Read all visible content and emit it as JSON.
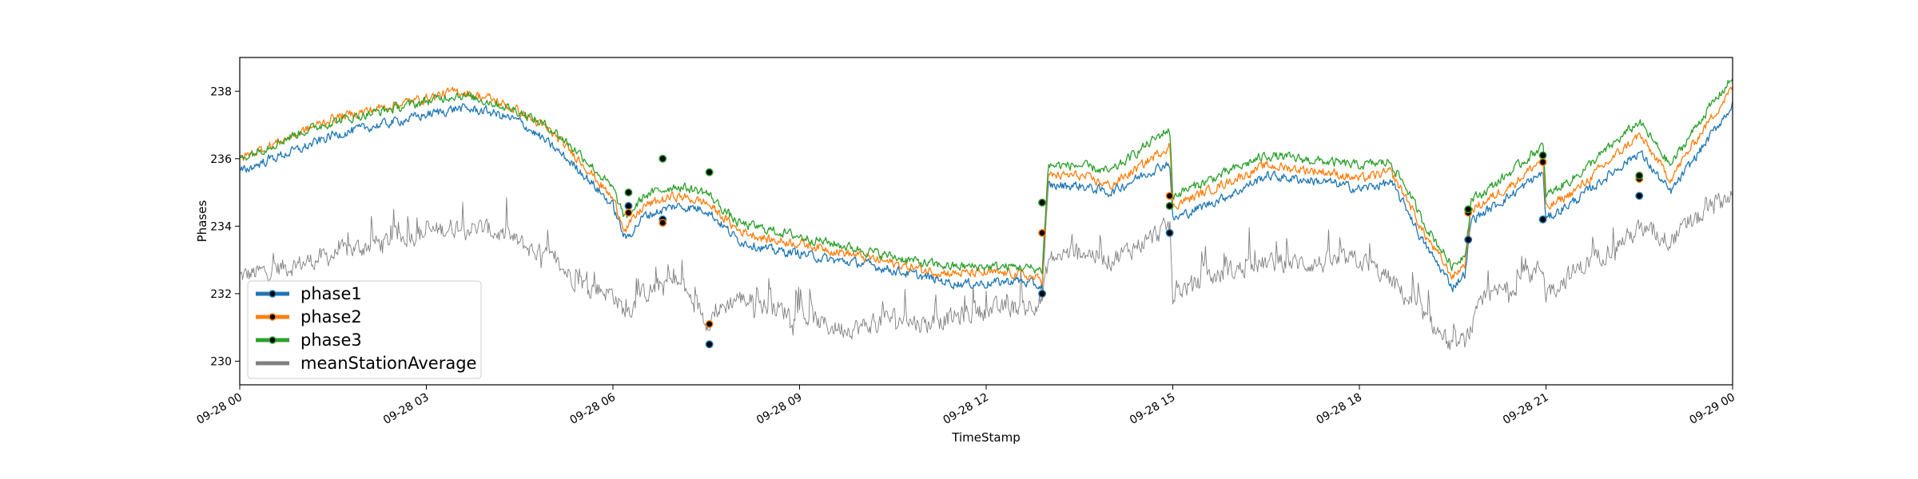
{
  "chart_data": {
    "type": "line",
    "title": "",
    "xlabel": "TimeStamp",
    "ylabel": "Phases",
    "x_range_hours": [
      0,
      24
    ],
    "ylim": [
      229.3,
      239.0
    ],
    "x_ticks": [
      {
        "hour": 0,
        "label": "09-28 00"
      },
      {
        "hour": 3,
        "label": "09-28 03"
      },
      {
        "hour": 6,
        "label": "09-28 06"
      },
      {
        "hour": 9,
        "label": "09-28 09"
      },
      {
        "hour": 12,
        "label": "09-28 12"
      },
      {
        "hour": 15,
        "label": "09-28 15"
      },
      {
        "hour": 18,
        "label": "09-28 18"
      },
      {
        "hour": 21,
        "label": "09-28 21"
      },
      {
        "hour": 24,
        "label": "09-29 00"
      }
    ],
    "y_ticks": [
      230,
      232,
      234,
      236,
      238
    ],
    "legend_position": "lower-left",
    "grid": false,
    "series": [
      {
        "name": "phase1",
        "color": "#1f77b4",
        "style": "line",
        "noise": 0.22,
        "values": [
          [
            0,
            235.6
          ],
          [
            0.5,
            236.0
          ],
          [
            1,
            236.3
          ],
          [
            1.5,
            236.7
          ],
          [
            2,
            236.9
          ],
          [
            2.5,
            237.1
          ],
          [
            3,
            237.3
          ],
          [
            3.5,
            237.5
          ],
          [
            4,
            237.4
          ],
          [
            4.5,
            237.1
          ],
          [
            5,
            236.4
          ],
          [
            5.5,
            235.6
          ],
          [
            6,
            234.6
          ],
          [
            6.2,
            233.6
          ],
          [
            6.5,
            234.3
          ],
          [
            7,
            234.6
          ],
          [
            7.5,
            234.5
          ],
          [
            8,
            233.6
          ],
          [
            8.5,
            233.3
          ],
          [
            9,
            233.2
          ],
          [
            9.5,
            233.0
          ],
          [
            10,
            232.9
          ],
          [
            10.5,
            232.7
          ],
          [
            11,
            232.5
          ],
          [
            11.5,
            232.3
          ],
          [
            12,
            232.3
          ],
          [
            12.5,
            232.4
          ],
          [
            12.9,
            232.2
          ],
          [
            13,
            235.2
          ],
          [
            13.5,
            235.2
          ],
          [
            14,
            235.0
          ],
          [
            14.5,
            235.5
          ],
          [
            14.95,
            235.9
          ],
          [
            15,
            234.2
          ],
          [
            15.5,
            234.6
          ],
          [
            16,
            235.0
          ],
          [
            16.5,
            235.5
          ],
          [
            17,
            235.4
          ],
          [
            17.5,
            235.3
          ],
          [
            18,
            235.1
          ],
          [
            18.5,
            235.3
          ],
          [
            18.8,
            234.4
          ],
          [
            19,
            233.6
          ],
          [
            19.5,
            232.2
          ],
          [
            19.7,
            232.6
          ],
          [
            19.8,
            234.2
          ],
          [
            20,
            234.4
          ],
          [
            20.5,
            235.0
          ],
          [
            20.95,
            235.6
          ],
          [
            21,
            234.2
          ],
          [
            21.5,
            234.8
          ],
          [
            22,
            235.5
          ],
          [
            22.5,
            236.2
          ],
          [
            23,
            235.0
          ],
          [
            23.5,
            236.3
          ],
          [
            24,
            237.6
          ]
        ]
      },
      {
        "name": "phase2",
        "color": "#ff7f0e",
        "style": "line",
        "noise": 0.22,
        "values": [
          [
            0,
            236.0
          ],
          [
            0.5,
            236.4
          ],
          [
            1,
            236.8
          ],
          [
            1.5,
            237.2
          ],
          [
            2,
            237.4
          ],
          [
            2.5,
            237.6
          ],
          [
            3,
            237.8
          ],
          [
            3.5,
            238.0
          ],
          [
            4,
            237.8
          ],
          [
            4.5,
            237.4
          ],
          [
            5,
            236.8
          ],
          [
            5.5,
            235.9
          ],
          [
            6,
            234.8
          ],
          [
            6.2,
            233.9
          ],
          [
            6.5,
            234.6
          ],
          [
            7,
            234.9
          ],
          [
            7.5,
            234.7
          ],
          [
            8,
            233.9
          ],
          [
            8.5,
            233.6
          ],
          [
            9,
            233.5
          ],
          [
            9.5,
            233.3
          ],
          [
            10,
            233.1
          ],
          [
            10.5,
            232.9
          ],
          [
            11,
            232.7
          ],
          [
            11.5,
            232.6
          ],
          [
            12,
            232.6
          ],
          [
            12.5,
            232.6
          ],
          [
            12.9,
            232.4
          ],
          [
            13,
            235.5
          ],
          [
            13.5,
            235.5
          ],
          [
            14,
            235.2
          ],
          [
            14.5,
            235.8
          ],
          [
            14.95,
            236.4
          ],
          [
            15,
            234.6
          ],
          [
            15.5,
            235.0
          ],
          [
            16,
            235.4
          ],
          [
            16.5,
            235.8
          ],
          [
            17,
            235.7
          ],
          [
            17.5,
            235.6
          ],
          [
            18,
            235.4
          ],
          [
            18.5,
            235.6
          ],
          [
            18.8,
            234.7
          ],
          [
            19,
            233.9
          ],
          [
            19.5,
            232.5
          ],
          [
            19.7,
            232.9
          ],
          [
            19.8,
            234.5
          ],
          [
            20,
            234.7
          ],
          [
            20.5,
            235.3
          ],
          [
            20.95,
            236.0
          ],
          [
            21,
            234.5
          ],
          [
            21.5,
            235.1
          ],
          [
            22,
            235.9
          ],
          [
            22.5,
            236.7
          ],
          [
            23,
            235.4
          ],
          [
            23.5,
            236.8
          ],
          [
            24,
            238.1
          ]
        ]
      },
      {
        "name": "phase3",
        "color": "#2ca02c",
        "style": "line",
        "noise": 0.22,
        "values": [
          [
            0,
            236.0
          ],
          [
            0.5,
            236.4
          ],
          [
            1,
            236.8
          ],
          [
            1.5,
            237.1
          ],
          [
            2,
            237.3
          ],
          [
            2.5,
            237.5
          ],
          [
            3,
            237.7
          ],
          [
            3.5,
            237.9
          ],
          [
            4,
            237.7
          ],
          [
            4.5,
            237.4
          ],
          [
            5,
            236.9
          ],
          [
            5.5,
            236.1
          ],
          [
            6,
            235.1
          ],
          [
            6.2,
            234.2
          ],
          [
            6.5,
            234.9
          ],
          [
            7,
            235.2
          ],
          [
            7.5,
            235.0
          ],
          [
            8,
            234.1
          ],
          [
            8.5,
            233.9
          ],
          [
            9,
            233.7
          ],
          [
            9.5,
            233.5
          ],
          [
            10,
            233.3
          ],
          [
            10.5,
            233.1
          ],
          [
            11,
            232.9
          ],
          [
            11.5,
            232.8
          ],
          [
            12,
            232.8
          ],
          [
            12.5,
            232.8
          ],
          [
            12.9,
            232.7
          ],
          [
            13,
            235.8
          ],
          [
            13.5,
            235.8
          ],
          [
            14,
            235.6
          ],
          [
            14.5,
            236.3
          ],
          [
            14.95,
            236.9
          ],
          [
            15,
            234.9
          ],
          [
            15.5,
            235.3
          ],
          [
            16,
            235.7
          ],
          [
            16.5,
            236.1
          ],
          [
            17,
            236.0
          ],
          [
            17.5,
            235.9
          ],
          [
            18,
            235.8
          ],
          [
            18.5,
            235.9
          ],
          [
            18.8,
            235.0
          ],
          [
            19,
            234.2
          ],
          [
            19.5,
            232.8
          ],
          [
            19.7,
            233.2
          ],
          [
            19.8,
            234.8
          ],
          [
            20,
            235.0
          ],
          [
            20.5,
            235.7
          ],
          [
            20.95,
            236.4
          ],
          [
            21,
            234.9
          ],
          [
            21.5,
            235.5
          ],
          [
            22,
            236.3
          ],
          [
            22.5,
            237.1
          ],
          [
            23,
            235.8
          ],
          [
            23.5,
            237.2
          ],
          [
            24,
            238.4
          ]
        ]
      },
      {
        "name": "meanStationAverage",
        "color": "#808080",
        "style": "thin",
        "noise": 0.45,
        "values": [
          [
            0,
            232.5
          ],
          [
            1,
            232.9
          ],
          [
            2,
            233.4
          ],
          [
            3,
            233.8
          ],
          [
            3.5,
            234.0
          ],
          [
            4,
            233.9
          ],
          [
            4.5,
            233.5
          ],
          [
            5,
            233.0
          ],
          [
            5.5,
            232.3
          ],
          [
            6,
            232.0
          ],
          [
            6.2,
            231.4
          ],
          [
            6.5,
            232.0
          ],
          [
            7,
            232.4
          ],
          [
            7.4,
            231.5
          ],
          [
            7.5,
            231.2
          ],
          [
            8,
            231.9
          ],
          [
            8.5,
            231.6
          ],
          [
            9,
            231.4
          ],
          [
            9.5,
            231.0
          ],
          [
            10,
            231.0
          ],
          [
            10.5,
            231.3
          ],
          [
            11,
            231.1
          ],
          [
            11.5,
            231.3
          ],
          [
            12,
            231.5
          ],
          [
            12.5,
            231.6
          ],
          [
            12.9,
            231.8
          ],
          [
            13,
            233.0
          ],
          [
            13.5,
            233.3
          ],
          [
            14,
            233.0
          ],
          [
            14.5,
            233.5
          ],
          [
            14.95,
            234.0
          ],
          [
            15,
            232.0
          ],
          [
            15.5,
            232.4
          ],
          [
            16,
            232.7
          ],
          [
            16.5,
            232.9
          ],
          [
            17,
            232.9
          ],
          [
            17.5,
            232.9
          ],
          [
            18,
            233.0
          ],
          [
            18.5,
            232.4
          ],
          [
            19,
            231.4
          ],
          [
            19.5,
            230.4
          ],
          [
            19.7,
            230.6
          ],
          [
            20,
            231.8
          ],
          [
            20.5,
            232.3
          ],
          [
            20.95,
            232.8
          ],
          [
            21,
            232.0
          ],
          [
            21.5,
            232.7
          ],
          [
            22,
            233.3
          ],
          [
            22.5,
            233.9
          ],
          [
            23,
            233.6
          ],
          [
            23.5,
            234.3
          ],
          [
            24,
            235.0
          ]
        ]
      }
    ],
    "event_markers": {
      "hours": [
        6.25,
        6.8,
        7.55,
        12.9,
        14.95,
        19.75,
        20.95,
        22.5
      ],
      "values": [
        [
          234.6,
          234.4,
          235.0
        ],
        [
          234.2,
          234.1,
          236.0
        ],
        [
          230.5,
          231.1,
          235.6
        ],
        [
          232.0,
          233.8,
          234.7
        ],
        [
          233.8,
          234.9,
          234.6
        ],
        [
          233.6,
          234.4,
          234.5
        ],
        [
          234.2,
          235.9,
          236.1
        ],
        [
          234.9,
          235.4,
          235.5
        ]
      ]
    },
    "legend_labels": [
      "phase1",
      "phase2",
      "phase3",
      "meanStationAverage"
    ]
  }
}
